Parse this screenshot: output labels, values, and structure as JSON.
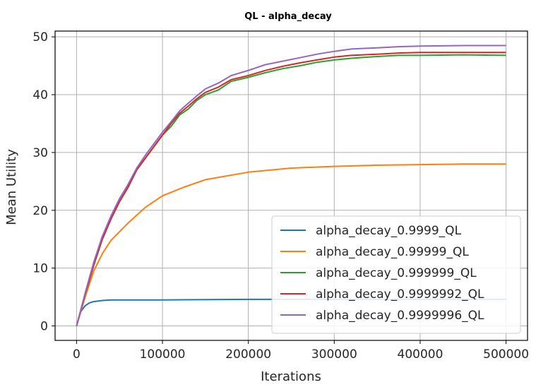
{
  "chart_data": {
    "type": "line",
    "title": "QL - alpha_decay",
    "xlabel": "Iterations",
    "ylabel": "Mean Utility",
    "xlim": [
      -25000,
      525000
    ],
    "ylim": [
      -2.5,
      51
    ],
    "xticks": [
      0,
      100000,
      200000,
      300000,
      400000,
      500000
    ],
    "xtick_labels": [
      "0",
      "100000",
      "200000",
      "300000",
      "400000",
      "500000"
    ],
    "yticks": [
      0,
      10,
      20,
      30,
      40,
      50
    ],
    "ytick_labels": [
      "0",
      "10",
      "20",
      "30",
      "40",
      "50"
    ],
    "grid": true,
    "legend_position": "lower-right",
    "series": [
      {
        "name": "alpha_decay_0.9999_QL",
        "color": "#1f77b4",
        "x": [
          0,
          5000,
          10000,
          15000,
          20000,
          30000,
          40000,
          60000,
          100000,
          200000,
          300000,
          400000,
          500000
        ],
        "y": [
          0,
          2.5,
          3.5,
          4.0,
          4.2,
          4.4,
          4.5,
          4.5,
          4.5,
          4.6,
          4.6,
          4.6,
          4.6
        ]
      },
      {
        "name": "alpha_decay_0.99999_QL",
        "color": "#ff7f0e",
        "x": [
          0,
          10000,
          20000,
          30000,
          40000,
          60000,
          80000,
          100000,
          125000,
          150000,
          200000,
          250000,
          300000,
          350000,
          400000,
          450000,
          500000
        ],
        "y": [
          0,
          5,
          9.5,
          12.5,
          14.8,
          17.8,
          20.5,
          22.5,
          24.0,
          25.3,
          26.6,
          27.3,
          27.6,
          27.8,
          27.9,
          28.0,
          28.0
        ]
      },
      {
        "name": "alpha_decay_0.999999_QL",
        "color": "#2ca02c",
        "x": [
          0,
          10000,
          20000,
          30000,
          40000,
          50000,
          60000,
          70000,
          80000,
          90000,
          100000,
          110000,
          120000,
          130000,
          140000,
          150000,
          165000,
          180000,
          200000,
          220000,
          240000,
          260000,
          280000,
          300000,
          320000,
          350000,
          375000,
          400000,
          450000,
          500000
        ],
        "y": [
          0,
          5.5,
          10.5,
          15,
          18.5,
          21.5,
          24,
          27,
          29,
          31,
          33,
          34.5,
          36.5,
          37.5,
          39,
          40,
          40.8,
          42.3,
          43.0,
          43.8,
          44.5,
          45.0,
          45.6,
          46.0,
          46.3,
          46.6,
          46.8,
          46.8,
          46.9,
          46.8
        ]
      },
      {
        "name": "alpha_decay_0.9999992_QL",
        "color": "#d62728",
        "x": [
          0,
          10000,
          20000,
          30000,
          40000,
          50000,
          60000,
          70000,
          80000,
          90000,
          100000,
          110000,
          120000,
          130000,
          140000,
          150000,
          165000,
          180000,
          200000,
          220000,
          240000,
          260000,
          280000,
          300000,
          320000,
          350000,
          375000,
          400000,
          450000,
          500000
        ],
        "y": [
          0,
          5.5,
          10.5,
          15,
          18.5,
          21.5,
          24,
          27,
          29,
          31,
          33,
          35,
          36.8,
          38,
          39.3,
          40.4,
          41.3,
          42.6,
          43.3,
          44.2,
          44.9,
          45.5,
          46.0,
          46.5,
          46.8,
          47.0,
          47.2,
          47.3,
          47.3,
          47.3
        ]
      },
      {
        "name": "alpha_decay_0.9999996_QL",
        "color": "#9467bd",
        "x": [
          0,
          10000,
          20000,
          30000,
          40000,
          50000,
          60000,
          70000,
          80000,
          90000,
          100000,
          110000,
          120000,
          130000,
          140000,
          150000,
          165000,
          180000,
          200000,
          220000,
          240000,
          260000,
          280000,
          300000,
          320000,
          350000,
          375000,
          400000,
          450000,
          500000
        ],
        "y": [
          0,
          5.7,
          11,
          15.5,
          19,
          22,
          24.5,
          27.3,
          29.5,
          31.5,
          33.5,
          35.3,
          37.2,
          38.5,
          39.8,
          41,
          42,
          43.3,
          44.2,
          45.2,
          45.8,
          46.4,
          47.0,
          47.5,
          47.9,
          48.1,
          48.3,
          48.4,
          48.5,
          48.5
        ]
      }
    ]
  }
}
